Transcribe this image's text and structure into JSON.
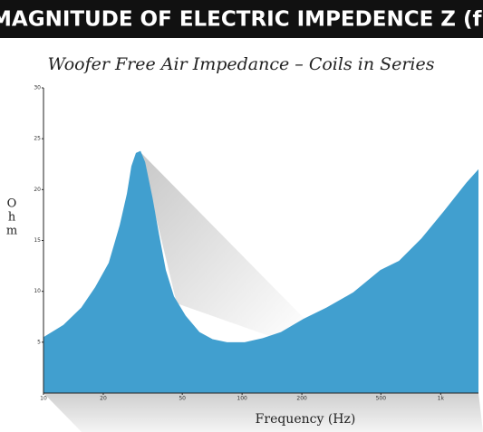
{
  "chart_data": {
    "type": "area",
    "header": "MAGNITUDE OF ELECTRIC IMPEDENCE Z (f)",
    "title": "Woofer Free Air Impedance – Coils in Series",
    "ylabel": "Ohm",
    "xlabel": "Frequency (Hz)",
    "xscale": "log",
    "color": "#419fcf",
    "x": [
      10,
      12.6,
      15.5,
      18.2,
      21.3,
      24.2,
      26.3,
      27.7,
      29.2,
      30.8,
      32.5,
      35.4,
      38.1,
      41.3,
      45.4,
      52,
      61,
      71,
      84,
      103,
      127,
      157,
      204,
      266,
      363,
      497,
      617,
      800,
      1040,
      1350,
      1550
    ],
    "values": [
      5.5,
      6.7,
      8.4,
      10.4,
      12.8,
      16.5,
      19.6,
      22.3,
      23.6,
      23.8,
      22.7,
      19.2,
      15.7,
      12.1,
      9.5,
      7.6,
      6.0,
      5.3,
      5.0,
      5.0,
      5.4,
      6.0,
      7.3,
      8.4,
      9.9,
      12.1,
      13.0,
      15.2,
      17.9,
      20.7,
      22.0
    ],
    "xlim": [
      10,
      1550
    ],
    "ylim": [
      0,
      30
    ],
    "xticks": [
      10,
      20,
      50,
      100,
      200,
      500,
      {
        "value": 1000,
        "label": "1k"
      }
    ],
    "yticks": [
      5,
      10,
      15,
      20,
      25,
      30
    ]
  }
}
